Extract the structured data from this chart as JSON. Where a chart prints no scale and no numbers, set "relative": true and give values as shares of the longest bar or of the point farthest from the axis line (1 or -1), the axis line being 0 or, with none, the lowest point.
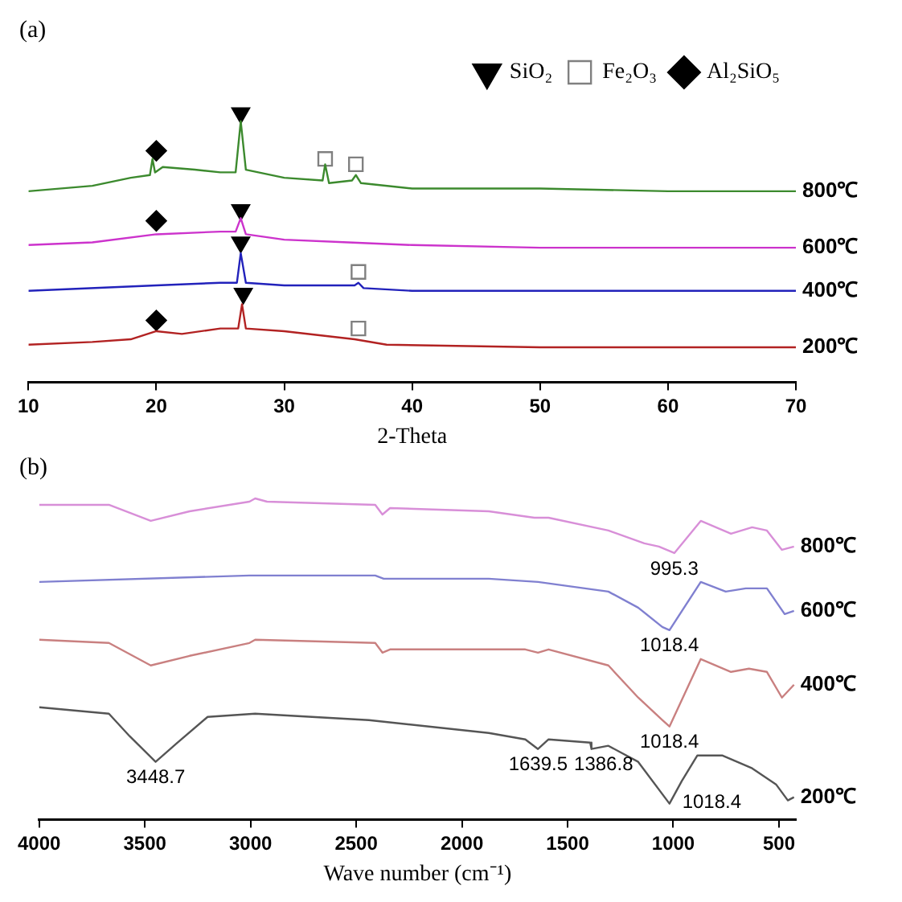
{
  "chart_data": [
    {
      "type": "line",
      "title": "(a)",
      "xlabel": "2-Theta",
      "relative": true,
      "xlim": [
        10,
        70
      ],
      "xticks": [
        10,
        20,
        30,
        40,
        50,
        60,
        70
      ],
      "grid": false,
      "legend": "top right",
      "series": [
        {
          "name": "800℃",
          "color": "#3c8a2e",
          "x": [
            10,
            15,
            18,
            19.5,
            19.7,
            19.9,
            20.5,
            23,
            25,
            26.2,
            26.6,
            27,
            30,
            33,
            33.2,
            33.5,
            35.3,
            35.6,
            36,
            40,
            50,
            60,
            70
          ],
          "values": [
            0.71,
            0.73,
            0.76,
            0.77,
            0.83,
            0.78,
            0.8,
            0.79,
            0.78,
            0.78,
            0.97,
            0.79,
            0.76,
            0.75,
            0.81,
            0.74,
            0.75,
            0.77,
            0.74,
            0.72,
            0.72,
            0.71,
            0.71
          ]
        },
        {
          "name": "600℃",
          "color": "#cc33cc",
          "x": [
            10,
            15,
            20,
            25,
            26.2,
            26.6,
            27,
            30,
            35,
            40,
            50,
            70
          ],
          "values": [
            0.51,
            0.52,
            0.55,
            0.56,
            0.56,
            0.61,
            0.55,
            0.53,
            0.52,
            0.51,
            0.5,
            0.5
          ]
        },
        {
          "name": "400℃",
          "color": "#2222bb",
          "x": [
            10,
            20,
            25,
            26.3,
            26.6,
            27,
            30,
            35.5,
            35.8,
            36.2,
            40,
            70
          ],
          "values": [
            0.34,
            0.36,
            0.37,
            0.37,
            0.48,
            0.37,
            0.36,
            0.36,
            0.37,
            0.35,
            0.34,
            0.34
          ]
        },
        {
          "name": "200℃",
          "color": "#b22222",
          "x": [
            10,
            15,
            18,
            20,
            22,
            25,
            26.4,
            26.7,
            27,
            30,
            35.5,
            38,
            50,
            70
          ],
          "values": [
            0.14,
            0.15,
            0.16,
            0.19,
            0.18,
            0.2,
            0.2,
            0.29,
            0.2,
            0.19,
            0.16,
            0.14,
            0.13,
            0.13
          ]
        },
        {
          "name": "SiO₂",
          "type": "scatter",
          "marker": "triangle",
          "color": "#000000",
          "x": [
            26.6,
            26.6,
            26.6,
            26.8
          ],
          "values": [
            1.0,
            0.64,
            0.52,
            0.33
          ]
        },
        {
          "name": "Fe₂O₃",
          "type": "scatter",
          "marker": "square",
          "color": "#808080",
          "x": [
            33.2,
            35.6,
            35.8,
            35.8
          ],
          "values": [
            0.83,
            0.81,
            0.41,
            0.2
          ]
        },
        {
          "name": "Al₂SiO₅",
          "type": "scatter",
          "marker": "diamond",
          "color": "#000000",
          "x": [
            20,
            20,
            20
          ],
          "values": [
            0.86,
            0.6,
            0.23
          ]
        }
      ]
    },
    {
      "type": "line",
      "title": "(b)",
      "xlabel": "Wave number (cm⁻¹)",
      "relative": true,
      "xlim": [
        4000,
        420
      ],
      "xticks": [
        4000,
        3500,
        3000,
        2500,
        2000,
        1500,
        1000,
        500
      ],
      "grid": false,
      "annotations": [
        {
          "text": "995.3",
          "x": 995.3,
          "y": 0.83
        },
        {
          "text": "1018.4",
          "x": 1018.4,
          "y": 0.59
        },
        {
          "text": "1018.4",
          "x": 1018.4,
          "y": 0.29
        },
        {
          "text": "3448.7",
          "x": 3448.7,
          "y": 0.18
        },
        {
          "text": "1639.5",
          "x": 1639.5,
          "y": 0.22
        },
        {
          "text": "1386.8",
          "x": 1386.8,
          "y": 0.22
        },
        {
          "text": "1018.4",
          "x": 1018.4,
          "y": 0.05
        }
      ],
      "series": [
        {
          "name": "800℃",
          "color": "#d88fd8",
          "x": [
            4000,
            3670,
            3472,
            3288,
            3005,
            2978,
            2922,
            2410,
            2376,
            2340,
            1873,
            1657,
            1590,
            1307,
            1137,
            1068,
            995,
            870,
            727,
            627,
            557,
            486,
            429
          ],
          "values": [
            0.98,
            0.98,
            0.93,
            0.96,
            0.99,
            1.0,
            0.99,
            0.98,
            0.95,
            0.97,
            0.96,
            0.94,
            0.94,
            0.9,
            0.86,
            0.85,
            0.83,
            0.93,
            0.89,
            0.91,
            0.9,
            0.84,
            0.85
          ]
        },
        {
          "name": "600℃",
          "color": "#8080d0",
          "x": [
            4000,
            3005,
            2410,
            2370,
            1873,
            1640,
            1307,
            1166,
            1052,
            1018,
            870,
            752,
            657,
            557,
            473,
            429
          ],
          "values": [
            0.74,
            0.76,
            0.76,
            0.75,
            0.75,
            0.74,
            0.71,
            0.66,
            0.6,
            0.59,
            0.74,
            0.71,
            0.72,
            0.72,
            0.64,
            0.65
          ]
        },
        {
          "name": "400℃",
          "color": "#c98080",
          "x": [
            4000,
            3670,
            3472,
            3288,
            3005,
            2978,
            2410,
            2376,
            2340,
            1700,
            1640,
            1590,
            1307,
            1166,
            1052,
            1018,
            870,
            727,
            642,
            557,
            486,
            429
          ],
          "values": [
            0.56,
            0.55,
            0.48,
            0.51,
            0.55,
            0.56,
            0.55,
            0.52,
            0.53,
            0.53,
            0.52,
            0.53,
            0.48,
            0.38,
            0.31,
            0.29,
            0.5,
            0.46,
            0.47,
            0.46,
            0.38,
            0.42
          ]
        },
        {
          "name": "200℃",
          "color": "#555555",
          "x": [
            4000,
            3670,
            3572,
            3449,
            3345,
            3203,
            2978,
            2440,
            1873,
            1700,
            1640,
            1590,
            1393,
            1387,
            1307,
            1166,
            1018,
            960,
            886,
            769,
            627,
            514,
            458,
            429
          ],
          "values": [
            0.35,
            0.33,
            0.26,
            0.18,
            0.24,
            0.32,
            0.33,
            0.31,
            0.27,
            0.25,
            0.22,
            0.25,
            0.24,
            0.22,
            0.23,
            0.18,
            0.05,
            0.12,
            0.2,
            0.2,
            0.16,
            0.11,
            0.06,
            0.07
          ]
        }
      ]
    }
  ]
}
